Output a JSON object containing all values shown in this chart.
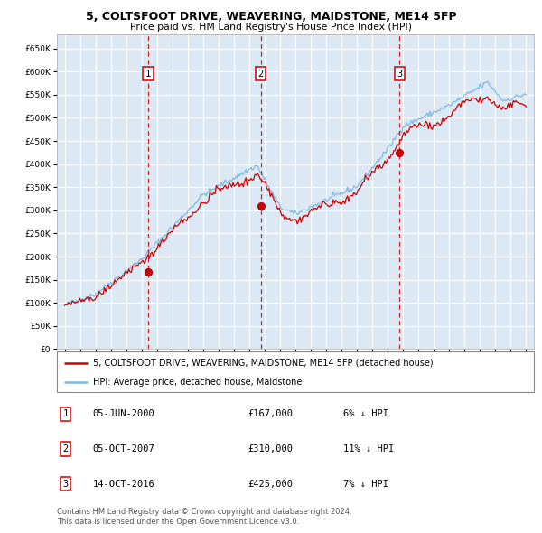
{
  "title": "5, COLTSFOOT DRIVE, WEAVERING, MAIDSTONE, ME14 5FP",
  "subtitle": "Price paid vs. HM Land Registry's House Price Index (HPI)",
  "legend_line1": "5, COLTSFOOT DRIVE, WEAVERING, MAIDSTONE, ME14 5FP (detached house)",
  "legend_line2": "HPI: Average price, detached house, Maidstone",
  "table_rows": [
    {
      "num": "1",
      "date": "05-JUN-2000",
      "price": "£167,000",
      "pct": "6% ↓ HPI"
    },
    {
      "num": "2",
      "date": "05-OCT-2007",
      "price": "£310,000",
      "pct": "11% ↓ HPI"
    },
    {
      "num": "3",
      "date": "14-OCT-2016",
      "price": "£425,000",
      "pct": "7% ↓ HPI"
    }
  ],
  "footer1": "Contains HM Land Registry data © Crown copyright and database right 2024.",
  "footer2": "This data is licensed under the Open Government Licence v3.0.",
  "sale_dates": [
    2000.42,
    2007.75,
    2016.78
  ],
  "sale_prices": [
    167000,
    310000,
    425000
  ],
  "sale_labels": [
    "1",
    "2",
    "3"
  ],
  "bg_color": "#dce9f5",
  "grid_color": "#ffffff",
  "hpi_color": "#7fb8e0",
  "price_color": "#cc0000",
  "dashed_color": "#cc0000",
  "ylim": [
    0,
    680000
  ],
  "xlim": [
    1994.5,
    2025.5
  ],
  "yticks": [
    0,
    50000,
    100000,
    150000,
    200000,
    250000,
    300000,
    350000,
    400000,
    450000,
    500000,
    550000,
    600000,
    650000
  ],
  "xticks": [
    1995,
    1996,
    1997,
    1998,
    1999,
    2000,
    2001,
    2002,
    2003,
    2004,
    2005,
    2006,
    2007,
    2008,
    2009,
    2010,
    2011,
    2012,
    2013,
    2014,
    2015,
    2016,
    2017,
    2018,
    2019,
    2020,
    2021,
    2022,
    2023,
    2024,
    2025
  ]
}
